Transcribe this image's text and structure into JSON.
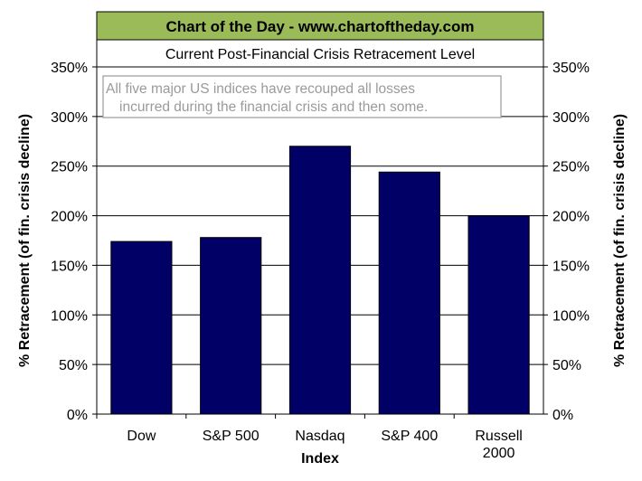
{
  "colors": {
    "banner": "#9bbb59",
    "bar": "#000066",
    "grid": "#000000",
    "annotation_text": "#9a9a9a"
  },
  "chart_data": {
    "type": "bar",
    "title": "Chart of the Day - www.chartoftheday.com",
    "subtitle": "Current Post-Financial Crisis Retracement Level",
    "annotation": [
      "All five major US indices have recouped all losses",
      "incurred during the financial crisis and then some."
    ],
    "categories": [
      [
        "Dow"
      ],
      [
        "S&P 500"
      ],
      [
        "Nasdaq"
      ],
      [
        "S&P 400"
      ],
      [
        "Russell",
        "2000"
      ]
    ],
    "values": [
      174,
      178,
      270,
      244,
      200
    ],
    "xlabel": "Index",
    "ylabel": "% Retracement (of fin. crisis decline)",
    "ylabel_right": "% Retracement (of fin. crisis decline)",
    "yticks": [
      "0%",
      "50%",
      "100%",
      "150%",
      "200%",
      "250%",
      "300%",
      "350%"
    ],
    "ylim": [
      0,
      350
    ],
    "grid": true,
    "secondary_axis": true
  }
}
